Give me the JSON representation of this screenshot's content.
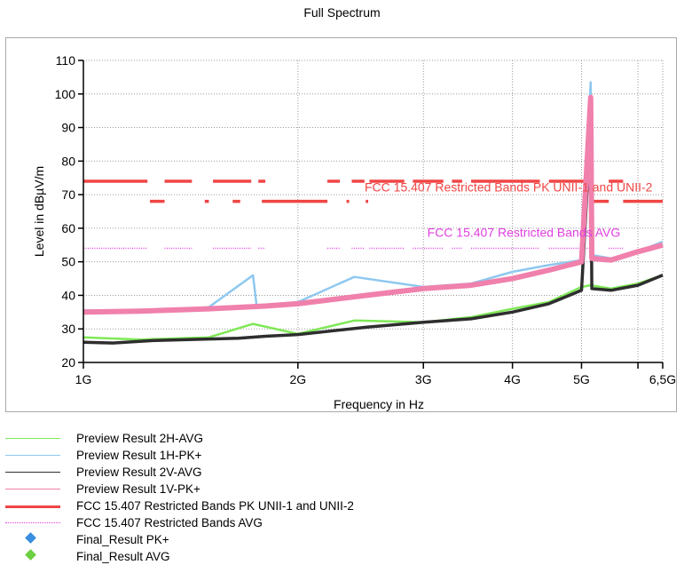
{
  "chart_data": {
    "type": "line",
    "title": "Full Spectrum",
    "xlabel": "Frequency in Hz",
    "ylabel": "Level in dBµV/m",
    "x_scale": "log",
    "xlim": [
      1000000000,
      6500000000
    ],
    "ylim": [
      20,
      110
    ],
    "grid": true,
    "x_ticks": [
      {
        "value": 1000000000,
        "label": "1G"
      },
      {
        "value": 2000000000,
        "label": "2G"
      },
      {
        "value": 3000000000,
        "label": "3G"
      },
      {
        "value": 4000000000,
        "label": "4G"
      },
      {
        "value": 5000000000,
        "label": "5G"
      },
      {
        "value": 6500000000,
        "label": "6,5G"
      }
    ],
    "x_minor_ticks": [
      6000000000
    ],
    "y_ticks": [
      20,
      30,
      40,
      50,
      60,
      70,
      80,
      90,
      100,
      110
    ],
    "series": [
      {
        "name": "Preview Result 2H-AVG",
        "color": "#7fe857",
        "x": [
          1000000000.0,
          1200000000.0,
          1500000000.0,
          1730000000.0,
          2000000000.0,
          2400000000.0,
          3000000000.0,
          3500000000.0,
          4000000000.0,
          4500000000.0,
          5000000000.0,
          5150000000.0,
          5500000000.0,
          6000000000.0,
          6500000000.0
        ],
        "y": [
          27.5,
          26.8,
          27.5,
          31.5,
          28.5,
          32.5,
          32.0,
          33.5,
          36.0,
          38.0,
          42.5,
          43.0,
          42.0,
          43.5,
          46.0
        ]
      },
      {
        "name": "Preview Result 1H-PK+",
        "color": "#8ec8f0",
        "x": [
          1000000000.0,
          1200000000.0,
          1500000000.0,
          1730000000.0,
          1750000000.0,
          2000000000.0,
          2400000000.0,
          3000000000.0,
          3500000000.0,
          4000000000.0,
          4500000000.0,
          5000000000.0,
          5150000000.0,
          5170000000.0,
          5500000000.0,
          6000000000.0,
          6500000000.0
        ],
        "y": [
          35.5,
          35.0,
          36.5,
          46.0,
          37.0,
          38.0,
          45.5,
          42.5,
          43.5,
          47.0,
          49.0,
          50.5,
          103.5,
          52.0,
          51.0,
          53.0,
          56.0
        ]
      },
      {
        "name": "Preview Result 2V-AVG",
        "color": "#2e2e2e",
        "x": [
          1000000000.0,
          1100000000.0,
          1250000000.0,
          1500000000.0,
          1650000000.0,
          1800000000.0,
          2000000000.0,
          2500000000.0,
          3000000000.0,
          3500000000.0,
          4000000000.0,
          4500000000.0,
          5000000000.0,
          5150000000.0,
          5170000000.0,
          5500000000.0,
          6000000000.0,
          6500000000.0
        ],
        "y": [
          26.0,
          25.8,
          26.5,
          27.0,
          27.2,
          27.8,
          28.3,
          30.5,
          32.0,
          33.0,
          35.0,
          37.5,
          41.5,
          91.0,
          42.0,
          41.5,
          43.0,
          46.0
        ]
      },
      {
        "name": "Preview Result 1V-PK+",
        "color": "#f080ac",
        "x": [
          1000000000.0,
          1200000000.0,
          1500000000.0,
          1800000000.0,
          2000000000.0,
          2500000000.0,
          3000000000.0,
          3500000000.0,
          4000000000.0,
          4500000000.0,
          5000000000.0,
          5150000000.0,
          5170000000.0,
          5500000000.0,
          6000000000.0,
          6500000000.0
        ],
        "y": [
          35.0,
          35.3,
          36.0,
          36.8,
          37.5,
          40.0,
          42.0,
          43.0,
          45.0,
          47.5,
          50.0,
          99.0,
          51.0,
          50.5,
          53.0,
          55.0
        ]
      }
    ],
    "limit_lines": [
      {
        "name": "FCC 15.407 Restricted Bands PK UNII-1 and UNII-2",
        "color": "#f04545",
        "segments": [
          {
            "x1": 1000000000.0,
            "x2": 1230000000.0,
            "y": 74.0
          },
          {
            "x1": 1240000000.0,
            "x2": 1300000000.0,
            "y": 68.0
          },
          {
            "x1": 1300000000.0,
            "x2": 1420000000.0,
            "y": 74.0
          },
          {
            "x1": 1480000000.0,
            "x2": 1500000000.0,
            "y": 68.0
          },
          {
            "x1": 1520000000.0,
            "x2": 1720000000.0,
            "y": 74.0
          },
          {
            "x1": 1620000000.0,
            "x2": 1660000000.0,
            "y": 68.0
          },
          {
            "x1": 1760000000.0,
            "x2": 1800000000.0,
            "y": 74.0
          },
          {
            "x1": 1780000000.0,
            "x2": 2200000000.0,
            "y": 68.0
          },
          {
            "x1": 2200000000.0,
            "x2": 2290000000.0,
            "y": 74.0
          },
          {
            "x1": 2340000000.0,
            "x2": 2360000000.0,
            "y": 68.0
          },
          {
            "x1": 2380000000.0,
            "x2": 2480000000.0,
            "y": 74.0
          },
          {
            "x1": 2490000000.0,
            "x2": 2510000000.0,
            "y": 68.0
          },
          {
            "x1": 2520000000.0,
            "x2": 2820000000.0,
            "y": 74.0
          },
          {
            "x1": 2900000000.0,
            "x2": 3200000000.0,
            "y": 74.0
          },
          {
            "x1": 3290000000.0,
            "x2": 3400000000.0,
            "y": 74.0
          },
          {
            "x1": 3500000000.0,
            "x2": 4370000000.0,
            "y": 74.0
          },
          {
            "x1": 4500000000.0,
            "x2": 5160000000.0,
            "y": 74.0
          },
          {
            "x1": 5160000000.0,
            "x2": 5460000000.0,
            "y": 68.0
          },
          {
            "x1": 5460000000.0,
            "x2": 5720000000.0,
            "y": 74.0
          },
          {
            "x1": 5720000000.0,
            "x2": 6500000000.0,
            "y": 68.0
          }
        ]
      },
      {
        "name": "FCC 15.407 Restricted Bands AVG",
        "color": "#e040e0",
        "segments": [
          {
            "x1": 1000000000.0,
            "x2": 1230000000.0,
            "y": 54.0
          },
          {
            "x1": 1300000000.0,
            "x2": 1420000000.0,
            "y": 54.0
          },
          {
            "x1": 1520000000.0,
            "x2": 1720000000.0,
            "y": 54.0
          },
          {
            "x1": 1760000000.0,
            "x2": 1800000000.0,
            "y": 54.0
          },
          {
            "x1": 2200000000.0,
            "x2": 2290000000.0,
            "y": 54.0
          },
          {
            "x1": 2380000000.0,
            "x2": 2480000000.0,
            "y": 54.0
          },
          {
            "x1": 2520000000.0,
            "x2": 2820000000.0,
            "y": 54.0
          },
          {
            "x1": 2900000000.0,
            "x2": 3200000000.0,
            "y": 54.0
          },
          {
            "x1": 3290000000.0,
            "x2": 3400000000.0,
            "y": 54.0
          },
          {
            "x1": 3500000000.0,
            "x2": 4370000000.0,
            "y": 54.0
          },
          {
            "x1": 4500000000.0,
            "x2": 5160000000.0,
            "y": 54.0
          },
          {
            "x1": 5460000000.0,
            "x2": 5720000000.0,
            "y": 54.0
          }
        ]
      }
    ],
    "annotations": [
      {
        "text": "FCC 15.407 Restricted Bands PK UNII-1 and UNII-2",
        "x": 3950000000.0,
        "y": 71.0,
        "color": "#f04545"
      },
      {
        "text": "FCC 15.407 Restricted Bands AVG",
        "x": 4150000000.0,
        "y": 57.5,
        "color": "#e040e0"
      }
    ],
    "final_results": [
      {
        "name": "Final_Result PK+",
        "color": "#3a8ee0",
        "points": []
      },
      {
        "name": "Final_Result AVG",
        "color": "#6cd040",
        "points": []
      }
    ],
    "legend": {
      "placement": "below",
      "entries": [
        {
          "label": "Preview Result 2H-AVG",
          "color": "#7fe857",
          "style": "line"
        },
        {
          "label": "Preview Result 1H-PK+",
          "color": "#8ec8f0",
          "style": "line"
        },
        {
          "label": "Preview Result 2V-AVG",
          "color": "#2e2e2e",
          "style": "line"
        },
        {
          "label": "Preview Result 1V-PK+",
          "color": "#f080ac",
          "style": "line"
        },
        {
          "label": "FCC 15.407 Restricted Bands PK UNII-1 and UNII-2",
          "color": "#f04545",
          "style": "thick-line"
        },
        {
          "label": "FCC 15.407 Restricted Bands AVG",
          "color": "#e040e0",
          "style": "dotted-line"
        },
        {
          "label": "Final_Result PK+",
          "color": "#3a8ee0",
          "style": "diamond"
        },
        {
          "label": "Final_Result AVG",
          "color": "#6cd040",
          "style": "diamond"
        }
      ]
    }
  }
}
